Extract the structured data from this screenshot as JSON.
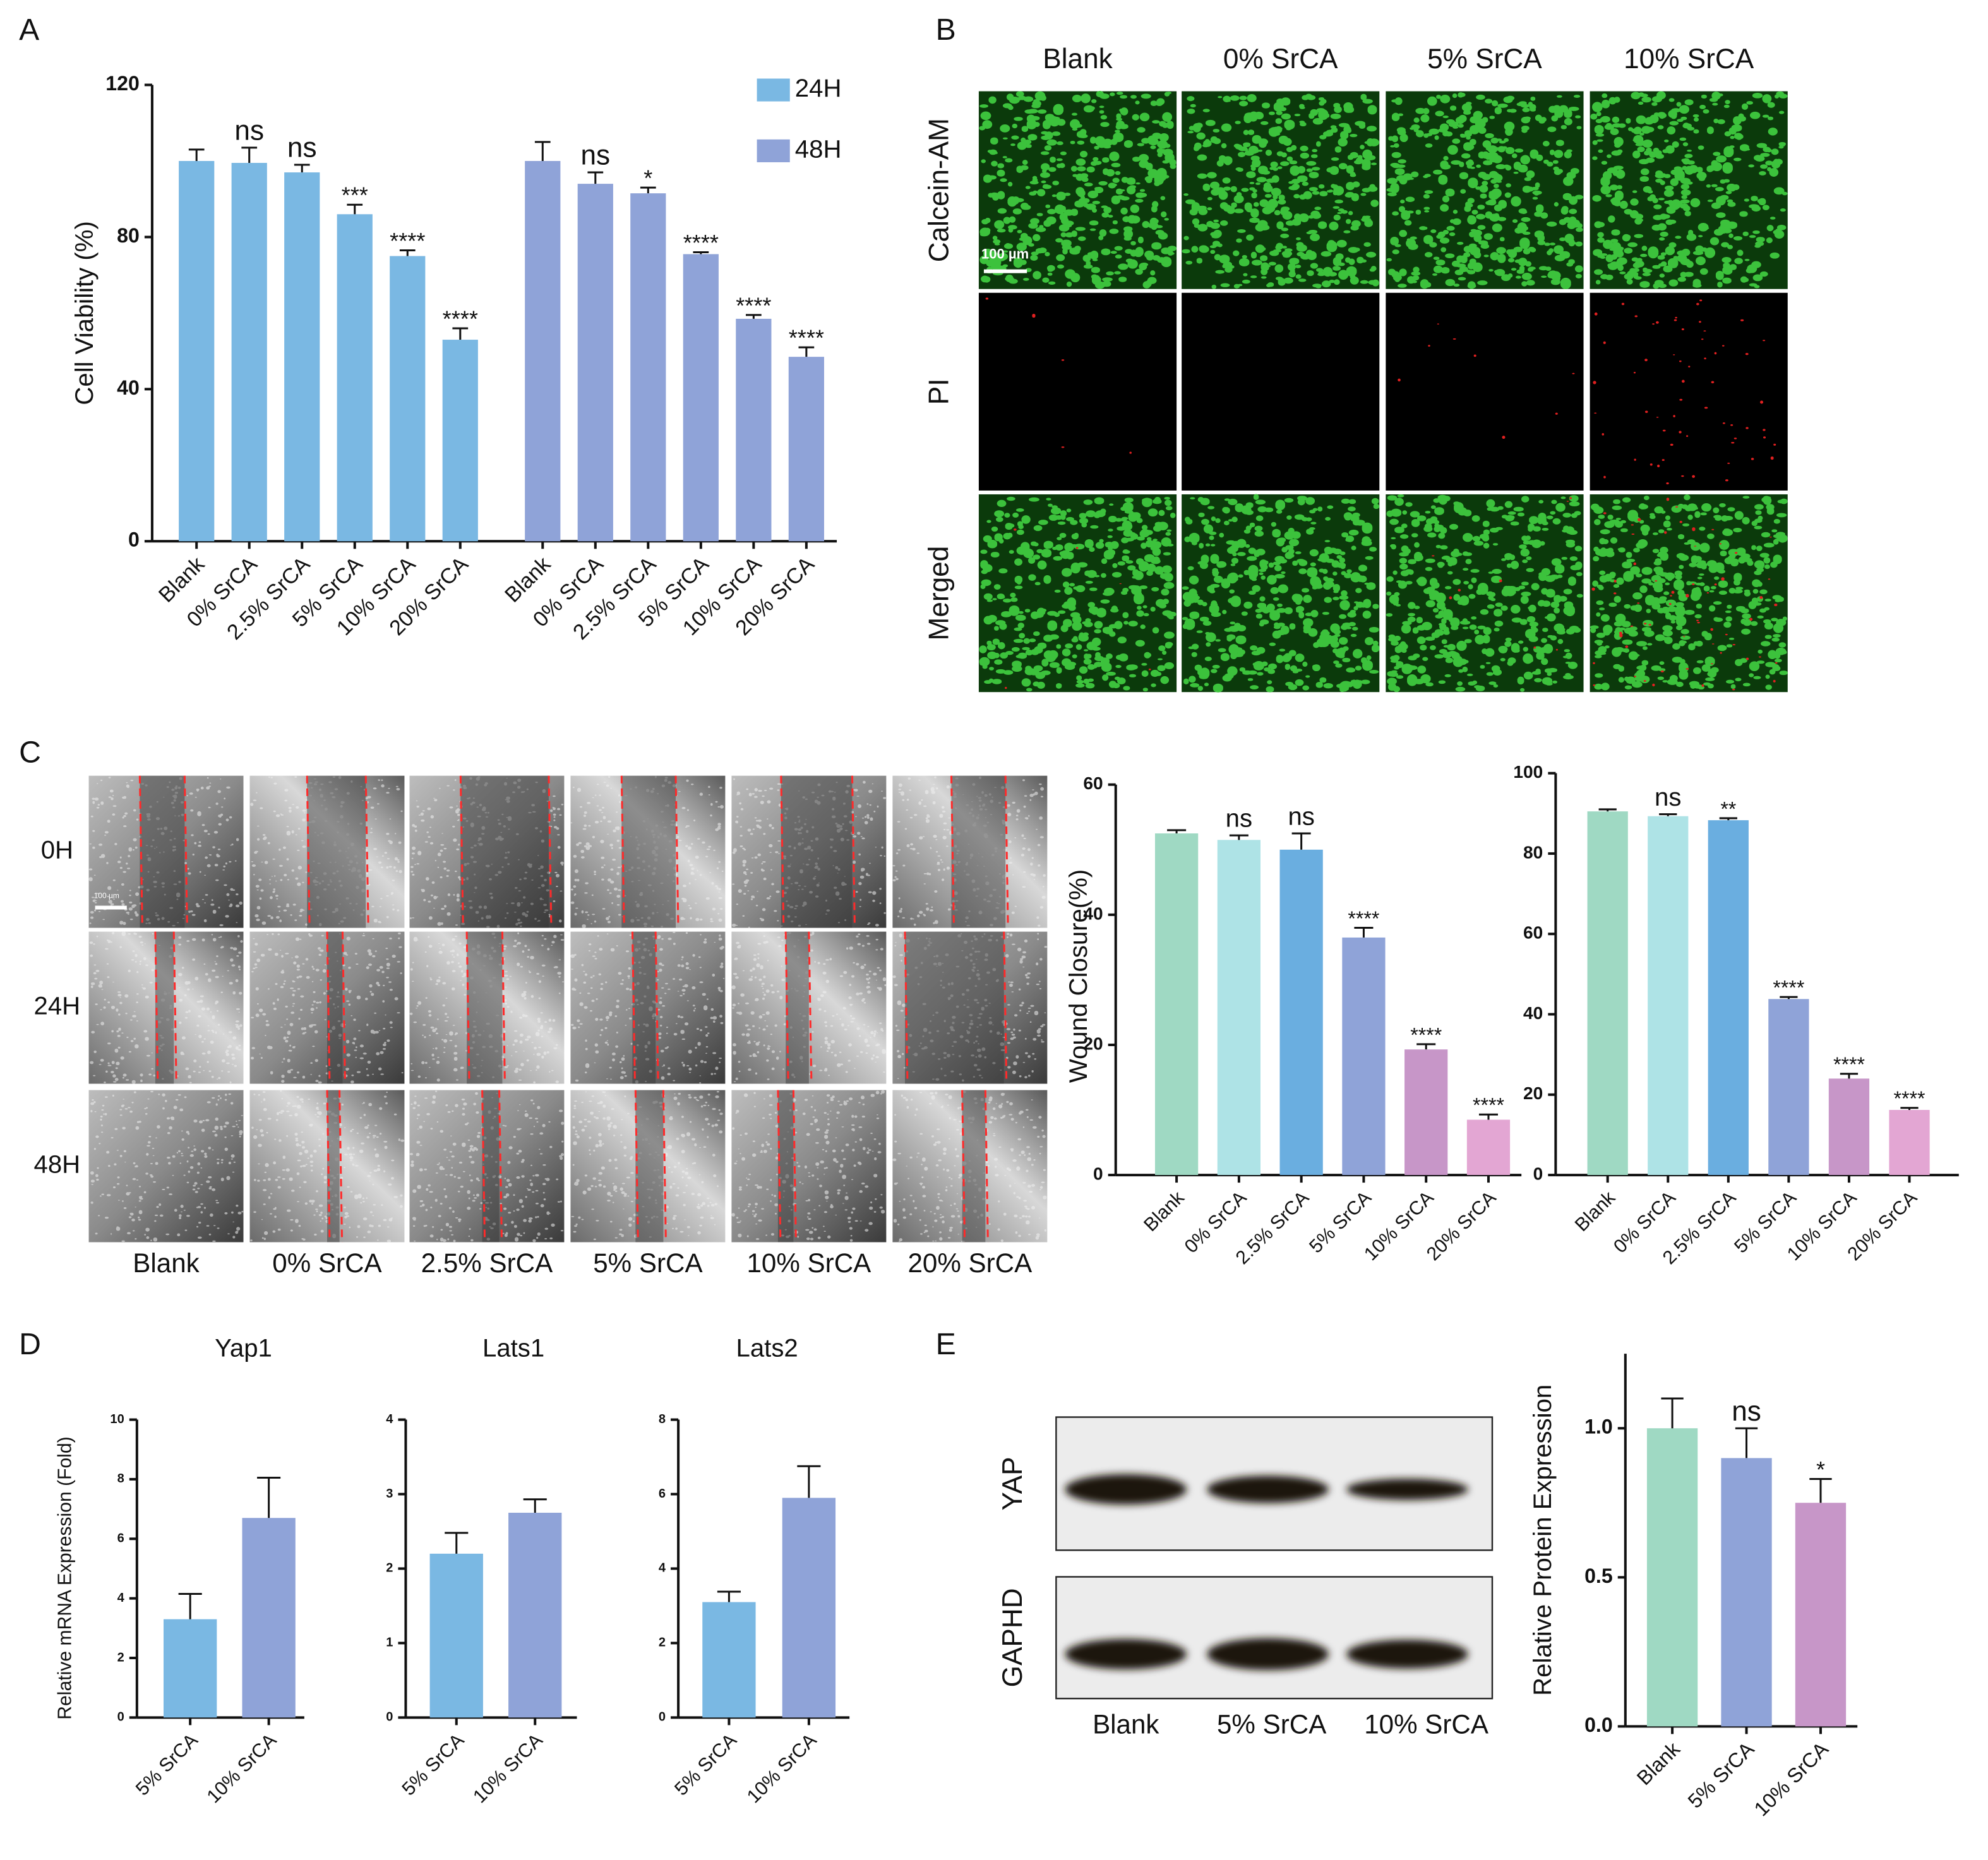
{
  "panels": {
    "letters": [
      "A",
      "B",
      "C",
      "D",
      "E"
    ],
    "live_dead": {
      "columns": [
        "Blank",
        "0% SrCA",
        "5% SrCA",
        "10% SrCA"
      ],
      "rows": [
        "Calcein-AM",
        "PI",
        "Merged"
      ],
      "scale_bar": "100 µm"
    },
    "scratch": {
      "rows": [
        "0H",
        "24H",
        "48H"
      ],
      "columns": [
        "Blank",
        "0% SrCA",
        "2.5% SrCA",
        "5% SrCA",
        "10% SrCA",
        "20% SrCA"
      ],
      "scale_bar": "100 µm"
    },
    "western_blot": {
      "rows": [
        "YAP",
        "GAPHD"
      ],
      "lanes": [
        "Blank",
        "5% SrCA",
        "10% SrCA"
      ]
    }
  },
  "chart_data": [
    {
      "type": "bar",
      "ylabel": "Cell Viability (%)",
      "categories": [
        "Blank",
        "0% SrCA",
        "2.5% SrCA",
        "5% SrCA",
        "10% SrCA",
        "20% SrCA"
      ],
      "series": [
        {
          "name": "24H",
          "color": "#7ab8e3",
          "values": [
            100,
            99.5,
            97,
            86,
            75,
            53
          ],
          "errors": [
            3,
            4,
            2,
            2.5,
            1.5,
            3
          ],
          "annotations": [
            null,
            "ns",
            "ns",
            "***",
            "****",
            "****"
          ]
        },
        {
          "name": "48H",
          "color": "#8fa3d8",
          "values": [
            100,
            94,
            91.5,
            75.5,
            58.5,
            48.5
          ],
          "errors": [
            5,
            3,
            1.5,
            0.5,
            1,
            2.5
          ],
          "annotations": [
            null,
            "ns",
            "*",
            "****",
            "****",
            "****"
          ]
        }
      ],
      "ylim": [
        0,
        120
      ],
      "yticks": [
        0,
        40,
        80,
        120
      ],
      "legend": "upper right"
    },
    {
      "type": "bar",
      "ylabel": "Wound Closure(%)",
      "categories": [
        "Blank",
        "0% SrCA",
        "2.5% SrCA",
        "5% SrCA",
        "10% SrCA",
        "20% SrCA"
      ],
      "series": [
        {
          "colors": [
            "#9fd9c3",
            "#aee3e6",
            "#6aaee0",
            "#8fa3d8",
            "#c796c8",
            "#e3a6d3"
          ],
          "values": [
            52.5,
            51.5,
            50,
            36.5,
            19.3,
            8.5
          ],
          "errors": [
            0.5,
            0.7,
            2.5,
            1.5,
            0.8,
            0.8
          ],
          "annotations": [
            null,
            "ns",
            "ns",
            "****",
            "****",
            "****"
          ]
        }
      ],
      "ylim": [
        0,
        60
      ],
      "yticks": [
        0,
        20,
        40,
        60
      ]
    },
    {
      "type": "bar",
      "categories": [
        "Blank",
        "0% SrCA",
        "2.5% SrCA",
        "5% SrCA",
        "10% SrCA",
        "20% SrCA"
      ],
      "series": [
        {
          "colors": [
            "#9fd9c3",
            "#aee3e6",
            "#6aaee0",
            "#8fa3d8",
            "#c796c8",
            "#e3a6d3"
          ],
          "values": [
            90.5,
            89.3,
            88.3,
            43.8,
            24,
            16.2
          ],
          "errors": [
            0.5,
            0.5,
            0.5,
            0.5,
            1.2,
            0.5
          ],
          "annotations": [
            null,
            "ns",
            "**",
            "****",
            "****",
            "****"
          ]
        }
      ],
      "ylim": [
        0,
        100
      ],
      "yticks": [
        0,
        20,
        40,
        60,
        80,
        100
      ]
    },
    {
      "type": "bar",
      "title": "Yap1",
      "ylabel": "Relative mRNA Expression (Fold)",
      "categories": [
        "5% SrCA",
        "10% SrCA"
      ],
      "series": [
        {
          "colors": [
            "#7ab8e3",
            "#8fa3d8"
          ],
          "values": [
            3.3,
            6.7
          ],
          "errors": [
            0.85,
            1.35
          ]
        }
      ],
      "ylim": [
        0,
        10
      ],
      "yticks": [
        0,
        2,
        4,
        6,
        8,
        10
      ]
    },
    {
      "type": "bar",
      "title": "Lats1",
      "categories": [
        "5% SrCA",
        "10% SrCA"
      ],
      "series": [
        {
          "colors": [
            "#7ab8e3",
            "#8fa3d8"
          ],
          "values": [
            2.2,
            2.75
          ],
          "errors": [
            0.28,
            0.18
          ]
        }
      ],
      "ylim": [
        0,
        4
      ],
      "yticks": [
        0,
        1,
        2,
        3,
        4
      ]
    },
    {
      "type": "bar",
      "title": "Lats2",
      "categories": [
        "5% SrCA",
        "10% SrCA"
      ],
      "series": [
        {
          "colors": [
            "#7ab8e3",
            "#8fa3d8"
          ],
          "values": [
            3.1,
            5.9
          ],
          "errors": [
            0.28,
            0.85
          ]
        }
      ],
      "ylim": [
        0,
        8
      ],
      "yticks": [
        0,
        2,
        4,
        6,
        8
      ]
    },
    {
      "type": "bar",
      "ylabel": "Relative Protein Expression",
      "categories": [
        "Blank",
        "5% SrCA",
        "10% SrCA"
      ],
      "series": [
        {
          "colors": [
            "#9fd9c3",
            "#8fa3d8",
            "#c796c8"
          ],
          "values": [
            1.0,
            0.9,
            0.75
          ],
          "errors": [
            0.1,
            0.1,
            0.08
          ],
          "annotations": [
            null,
            "ns",
            "*"
          ]
        }
      ],
      "ylim": [
        0,
        1.25
      ],
      "yticks": [
        {
          "value": 0,
          "label": "0.0"
        },
        {
          "value": 0.5,
          "label": "0.5"
        },
        {
          "value": 1,
          "label": "1.0"
        }
      ]
    }
  ]
}
